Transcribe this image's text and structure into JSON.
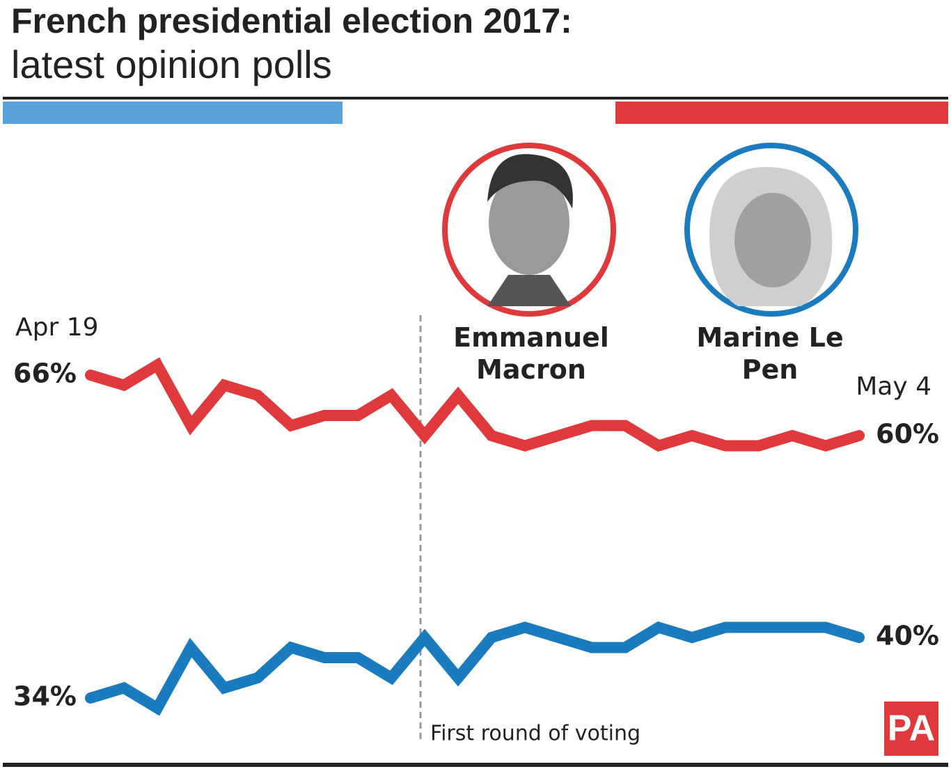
{
  "title": "French presidential election 2017:",
  "subtitle": "latest opinion polls",
  "logo": "PA",
  "chart_data": {
    "type": "line",
    "categories": [
      "Apr 19",
      null,
      null,
      null,
      null,
      null,
      null,
      null,
      null,
      null,
      null,
      null,
      null,
      null,
      null,
      null,
      null,
      null,
      null,
      null,
      null,
      null,
      null,
      "May 4"
    ],
    "series": [
      {
        "name": "Emmanuel Macron",
        "color": "#e0393b",
        "values": [
          66,
          65,
          67,
          61,
          65,
          64,
          61,
          62,
          62,
          64,
          60,
          64,
          60,
          59,
          60,
          61,
          61,
          59,
          60,
          59,
          59,
          60,
          59,
          60
        ],
        "value_labels": [
          "66%",
          null,
          null,
          null,
          null,
          null,
          null,
          null,
          null,
          null,
          null,
          null,
          null,
          null,
          null,
          null,
          null,
          null,
          null,
          null,
          null,
          null,
          null,
          "60%"
        ]
      },
      {
        "name": "Marine Le Pen",
        "color": "#1a7bbf",
        "values": [
          34,
          35,
          33,
          39,
          35,
          36,
          39,
          38,
          38,
          36,
          40,
          36,
          40,
          41,
          40,
          39,
          39,
          41,
          40,
          41,
          41,
          41,
          41,
          40
        ],
        "value_labels": [
          "34%",
          null,
          null,
          null,
          null,
          null,
          null,
          null,
          null,
          null,
          null,
          null,
          null,
          null,
          null,
          null,
          null,
          null,
          null,
          null,
          null,
          null,
          null,
          "40%"
        ]
      }
    ],
    "annotation": "First round of voting"
  }
}
